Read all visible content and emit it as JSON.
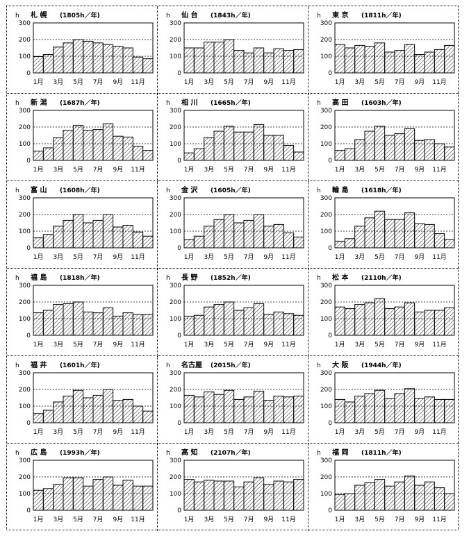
{
  "chart_data": [
    {
      "type": "bar",
      "title": "札 幌",
      "total": "(1805h／年)",
      "ylabel": "h",
      "ylim": [
        0,
        300
      ],
      "yticks": [
        "0",
        "100",
        "200",
        "300"
      ],
      "categories": [
        "1月",
        "",
        "3月",
        "",
        "5月",
        "",
        "7月",
        "",
        "9月",
        "",
        "11月",
        ""
      ],
      "values": [
        98,
        110,
        155,
        180,
        200,
        190,
        180,
        170,
        160,
        150,
        95,
        85
      ]
    },
    {
      "type": "bar",
      "title": "仙 台",
      "total": "(1843h／年)",
      "ylabel": "h",
      "ylim": [
        0,
        300
      ],
      "yticks": [
        "0",
        "100",
        "200",
        "300"
      ],
      "categories": [
        "1月",
        "",
        "3月",
        "",
        "5月",
        "",
        "7月",
        "",
        "9月",
        "",
        "11月",
        ""
      ],
      "values": [
        150,
        150,
        185,
        185,
        200,
        135,
        120,
        150,
        120,
        145,
        135,
        140
      ]
    },
    {
      "type": "bar",
      "title": "東 京",
      "total": "(1811h／年)",
      "ylabel": "h",
      "ylim": [
        0,
        300
      ],
      "yticks": [
        "0",
        "100",
        "200",
        "300"
      ],
      "categories": [
        "1月",
        "",
        "3月",
        "",
        "5月",
        "",
        "7月",
        "",
        "9月",
        "",
        "11月",
        ""
      ],
      "values": [
        170,
        150,
        165,
        160,
        180,
        125,
        135,
        170,
        110,
        125,
        140,
        165
      ]
    },
    {
      "type": "bar",
      "title": "新 潟",
      "total": "(1687h／年)",
      "ylabel": "h",
      "ylim": [
        0,
        300
      ],
      "yticks": [
        "0",
        "100",
        "200",
        "300"
      ],
      "categories": [
        "1月",
        "",
        "3月",
        "",
        "5月",
        "",
        "7月",
        "",
        "9月",
        "",
        "11月",
        ""
      ],
      "values": [
        55,
        75,
        135,
        180,
        210,
        180,
        185,
        220,
        145,
        140,
        85,
        60
      ]
    },
    {
      "type": "bar",
      "title": "相 川",
      "total": "(1665h／年)",
      "ylabel": "h",
      "ylim": [
        0,
        300
      ],
      "yticks": [
        "0",
        "100",
        "200",
        "300"
      ],
      "categories": [
        "1月",
        "",
        "3月",
        "",
        "5月",
        "",
        "7月",
        "",
        "9月",
        "",
        "11月",
        ""
      ],
      "values": [
        45,
        70,
        135,
        175,
        205,
        170,
        170,
        215,
        150,
        150,
        90,
        50
      ]
    },
    {
      "type": "bar",
      "title": "高 田",
      "total": "(1603h／年)",
      "ylabel": "h",
      "ylim": [
        0,
        300
      ],
      "yticks": [
        "0",
        "100",
        "200",
        "300"
      ],
      "categories": [
        "1月",
        "",
        "3月",
        "",
        "5月",
        "",
        "7月",
        "",
        "9月",
        "",
        "11月",
        ""
      ],
      "values": [
        60,
        70,
        125,
        175,
        205,
        150,
        160,
        190,
        120,
        125,
        100,
        80
      ]
    },
    {
      "type": "bar",
      "title": "富 山",
      "total": "(1608h／年)",
      "ylabel": "h",
      "ylim": [
        0,
        300
      ],
      "yticks": [
        "0",
        "100",
        "200",
        "300"
      ],
      "categories": [
        "1月",
        "",
        "3月",
        "",
        "5月",
        "",
        "7月",
        "",
        "9月",
        "",
        "11月",
        ""
      ],
      "values": [
        60,
        80,
        130,
        165,
        200,
        150,
        165,
        200,
        125,
        135,
        95,
        70
      ]
    },
    {
      "type": "bar",
      "title": "金 沢",
      "total": "(1605h／年)",
      "ylabel": "h",
      "ylim": [
        0,
        300
      ],
      "yticks": [
        "0",
        "100",
        "200",
        "300"
      ],
      "categories": [
        "1月",
        "",
        "3月",
        "",
        "5月",
        "",
        "7月",
        "",
        "9月",
        "",
        "11月",
        ""
      ],
      "values": [
        50,
        70,
        130,
        170,
        200,
        150,
        165,
        200,
        130,
        140,
        90,
        65
      ]
    },
    {
      "type": "bar",
      "title": "輪 島",
      "total": "(1618h／年)",
      "ylabel": "h",
      "ylim": [
        0,
        300
      ],
      "yticks": [
        "0",
        "100",
        "200",
        "300"
      ],
      "categories": [
        "1月",
        "",
        "3月",
        "",
        "5月",
        "",
        "7月",
        "",
        "9月",
        "",
        "11月",
        ""
      ],
      "values": [
        40,
        55,
        130,
        180,
        220,
        170,
        170,
        210,
        145,
        140,
        85,
        50
      ]
    },
    {
      "type": "bar",
      "title": "福 島",
      "total": "(1818h／年)",
      "ylabel": "h",
      "ylim": [
        0,
        300
      ],
      "yticks": [
        "0",
        "100",
        "200",
        "300"
      ],
      "categories": [
        "1月",
        "",
        "3月",
        "",
        "5月",
        "",
        "7月",
        "",
        "9月",
        "",
        "11月",
        ""
      ],
      "values": [
        135,
        150,
        185,
        190,
        200,
        140,
        135,
        165,
        115,
        135,
        125,
        125
      ]
    },
    {
      "type": "bar",
      "title": "長 野",
      "total": "(1852h／年)",
      "ylabel": "h",
      "ylim": [
        0,
        300
      ],
      "yticks": [
        "0",
        "100",
        "200",
        "300"
      ],
      "categories": [
        "1月",
        "",
        "3月",
        "",
        "5月",
        "",
        "7月",
        "",
        "9月",
        "",
        "11月",
        ""
      ],
      "values": [
        115,
        120,
        170,
        185,
        200,
        150,
        165,
        190,
        125,
        140,
        130,
        120
      ]
    },
    {
      "type": "bar",
      "title": "松 本",
      "total": "(2110h／年)",
      "ylabel": "h",
      "ylim": [
        0,
        300
      ],
      "yticks": [
        "0",
        "100",
        "200",
        "300"
      ],
      "categories": [
        "1月",
        "",
        "3月",
        "",
        "5月",
        "",
        "7月",
        "",
        "9月",
        "",
        "11月",
        ""
      ],
      "values": [
        170,
        160,
        185,
        195,
        220,
        160,
        170,
        195,
        140,
        150,
        150,
        165
      ]
    },
    {
      "type": "bar",
      "title": "福 井",
      "total": "(1601h／年)",
      "ylabel": "h",
      "ylim": [
        0,
        300
      ],
      "yticks": [
        "0",
        "100",
        "200",
        "300"
      ],
      "categories": [
        "1月",
        "",
        "3月",
        "",
        "5月",
        "",
        "7月",
        "",
        "9月",
        "",
        "11月",
        ""
      ],
      "values": [
        55,
        75,
        125,
        160,
        195,
        150,
        165,
        200,
        135,
        140,
        100,
        70
      ]
    },
    {
      "type": "bar",
      "title": "名古屋",
      "total": "(2015h／年)",
      "ylabel": "h",
      "ylim": [
        0,
        300
      ],
      "yticks": [
        "0",
        "100",
        "200",
        "300"
      ],
      "categories": [
        "1月",
        "",
        "3月",
        "",
        "5月",
        "",
        "7月",
        "",
        "9月",
        "",
        "11月",
        ""
      ],
      "values": [
        165,
        155,
        185,
        170,
        195,
        140,
        155,
        190,
        135,
        160,
        155,
        160
      ]
    },
    {
      "type": "bar",
      "title": "大 阪",
      "total": "(1944h／年)",
      "ylabel": "h",
      "ylim": [
        0,
        300
      ],
      "yticks": [
        "0",
        "100",
        "200",
        "300"
      ],
      "categories": [
        "1月",
        "",
        "3月",
        "",
        "5月",
        "",
        "7月",
        "",
        "9月",
        "",
        "11月",
        ""
      ],
      "values": [
        140,
        125,
        160,
        175,
        195,
        145,
        175,
        205,
        145,
        155,
        140,
        140
      ]
    },
    {
      "type": "bar",
      "title": "広 島",
      "total": "(1993h／年)",
      "ylabel": "h",
      "ylim": [
        0,
        300
      ],
      "yticks": [
        "0",
        "100",
        "200",
        "300"
      ],
      "categories": [
        "1月",
        "",
        "3月",
        "",
        "5月",
        "",
        "7月",
        "",
        "9月",
        "",
        "11月",
        ""
      ],
      "values": [
        120,
        130,
        155,
        195,
        195,
        145,
        185,
        200,
        150,
        180,
        145,
        145
      ]
    },
    {
      "type": "bar",
      "title": "高 知",
      "total": "(2107h／年)",
      "ylabel": "h",
      "ylim": [
        0,
        300
      ],
      "yticks": [
        "0",
        "100",
        "200",
        "300"
      ],
      "categories": [
        "1月",
        "",
        "3月",
        "",
        "5月",
        "",
        "7月",
        "",
        "9月",
        "",
        "11月",
        ""
      ],
      "values": [
        185,
        170,
        180,
        175,
        175,
        140,
        170,
        195,
        155,
        175,
        170,
        185
      ]
    },
    {
      "type": "bar",
      "title": "福 岡",
      "total": "(1811h／年)",
      "ylabel": "h",
      "ylim": [
        0,
        300
      ],
      "yticks": [
        "0",
        "100",
        "200",
        "300"
      ],
      "categories": [
        "1月",
        "",
        "3月",
        "",
        "5月",
        "",
        "7月",
        "",
        "9月",
        "",
        "11月",
        ""
      ],
      "values": [
        95,
        100,
        150,
        165,
        185,
        145,
        170,
        205,
        150,
        170,
        135,
        100
      ]
    }
  ]
}
